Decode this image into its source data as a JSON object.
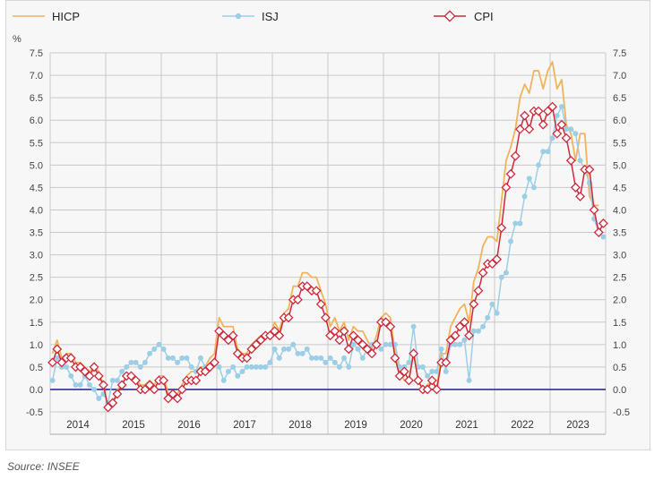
{
  "chart_data": {
    "type": "line",
    "ylabel": "%",
    "ylim": [
      -0.5,
      7.5
    ],
    "yticks": [
      "7.5",
      "7.0",
      "6.5",
      "6.0",
      "5.5",
      "5.0",
      "4.5",
      "4.0",
      "3.5",
      "3.0",
      "2.5",
      "2.0",
      "1.5",
      "1.0",
      "0.5",
      "0.0",
      "-0.5"
    ],
    "years": [
      "2014",
      "2015",
      "2016",
      "2017",
      "2018",
      "2019",
      "2020",
      "2021",
      "2022",
      "2023"
    ],
    "x_start": "2014-01",
    "x_end": "2023-10",
    "source": "Source: INSEE",
    "colors": {
      "hicp": "#f2b35a",
      "isj": "#9ccfe6",
      "cpi": "#cc2a3c",
      "zero": "#2d2f8f",
      "grid": "#c8c8c8"
    },
    "series": [
      {
        "name": "HICP",
        "style": "line",
        "values": [
          0.8,
          1.1,
          0.7,
          0.8,
          0.8,
          0.6,
          0.6,
          0.5,
          0.4,
          0.5,
          0.4,
          0.1,
          -0.4,
          -0.3,
          0.0,
          0.1,
          0.3,
          0.3,
          0.2,
          0.1,
          0.1,
          0.2,
          0.1,
          0.3,
          0.3,
          -0.1,
          -0.1,
          -0.1,
          0.1,
          0.3,
          0.4,
          0.4,
          0.5,
          0.5,
          0.7,
          0.8,
          1.6,
          1.4,
          1.4,
          1.4,
          0.9,
          0.8,
          0.8,
          1.0,
          1.1,
          1.2,
          1.2,
          1.2,
          1.5,
          1.3,
          1.7,
          1.8,
          2.3,
          2.3,
          2.6,
          2.6,
          2.5,
          2.5,
          2.2,
          1.9,
          1.4,
          1.6,
          1.3,
          1.5,
          1.1,
          1.4,
          1.3,
          1.3,
          1.1,
          0.9,
          1.2,
          1.6,
          1.7,
          1.6,
          0.8,
          0.4,
          0.2,
          0.2,
          0.9,
          0.2,
          0.0,
          0.1,
          0.2,
          0.0,
          0.8,
          0.8,
          1.4,
          1.6,
          1.8,
          1.9,
          1.5,
          2.4,
          2.7,
          3.2,
          3.4,
          3.4,
          3.3,
          4.2,
          5.1,
          5.4,
          5.8,
          6.5,
          6.8,
          6.6,
          7.1,
          7.1,
          6.7,
          7.1,
          7.3,
          6.7,
          6.9,
          5.9,
          5.7,
          5.1,
          5.7,
          5.7,
          4.3,
          4.1,
          4.1
        ]
      },
      {
        "name": "ISJ",
        "style": "dots",
        "values": [
          0.2,
          0.7,
          0.5,
          0.5,
          0.3,
          0.1,
          0.1,
          0.3,
          0.1,
          0.0,
          -0.2,
          -0.1,
          -0.3,
          0.2,
          0.2,
          0.4,
          0.5,
          0.6,
          0.6,
          0.5,
          0.6,
          0.8,
          0.9,
          1.0,
          0.9,
          0.7,
          0.7,
          0.6,
          0.7,
          0.7,
          0.5,
          0.4,
          0.7,
          0.5,
          0.5,
          0.6,
          0.5,
          0.2,
          0.4,
          0.5,
          0.3,
          0.4,
          0.5,
          0.5,
          0.5,
          0.5,
          0.5,
          0.6,
          0.9,
          0.7,
          0.9,
          0.9,
          1.0,
          0.8,
          0.8,
          0.9,
          0.7,
          0.7,
          0.7,
          0.6,
          0.7,
          0.6,
          0.5,
          0.7,
          0.5,
          1.0,
          0.9,
          0.7,
          0.9,
          1.0,
          1.0,
          0.9,
          1.0,
          1.0,
          1.0,
          0.5,
          0.5,
          0.6,
          1.4,
          0.5,
          0.5,
          0.3,
          0.4,
          0.4,
          0.9,
          0.4,
          1.0,
          1.0,
          1.0,
          1.1,
          0.2,
          1.3,
          1.3,
          1.4,
          1.6,
          1.9,
          1.7,
          2.5,
          2.6,
          3.3,
          3.7,
          3.7,
          4.3,
          4.7,
          4.5,
          5.0,
          5.3,
          5.3,
          5.6,
          6.1,
          6.3,
          5.8,
          5.8,
          5.7,
          5.1,
          4.9,
          4.6,
          3.8,
          3.5,
          3.4
        ]
      },
      {
        "name": "CPI",
        "style": "diamonds",
        "values": [
          0.6,
          0.9,
          0.6,
          0.7,
          0.7,
          0.5,
          0.5,
          0.4,
          0.3,
          0.5,
          0.3,
          0.1,
          -0.4,
          -0.3,
          -0.1,
          0.1,
          0.3,
          0.3,
          0.2,
          0.0,
          0.0,
          0.1,
          0.0,
          0.2,
          0.2,
          -0.2,
          -0.1,
          -0.2,
          0.0,
          0.2,
          0.2,
          0.2,
          0.4,
          0.4,
          0.5,
          0.6,
          1.3,
          1.2,
          1.1,
          1.2,
          0.8,
          0.7,
          0.7,
          0.9,
          1.0,
          1.1,
          1.2,
          1.2,
          1.3,
          1.2,
          1.6,
          1.6,
          2.0,
          2.0,
          2.3,
          2.3,
          2.2,
          2.2,
          1.9,
          1.6,
          1.2,
          1.3,
          1.1,
          1.3,
          0.9,
          1.2,
          1.1,
          1.0,
          0.9,
          0.8,
          1.0,
          1.5,
          1.5,
          1.4,
          0.7,
          0.3,
          0.4,
          0.2,
          0.8,
          0.2,
          0.0,
          0.0,
          0.2,
          0.0,
          0.6,
          0.6,
          1.1,
          1.2,
          1.4,
          1.5,
          1.2,
          1.9,
          2.2,
          2.6,
          2.8,
          2.8,
          2.9,
          3.6,
          4.5,
          4.8,
          5.2,
          5.8,
          6.1,
          5.8,
          6.2,
          6.2,
          5.9,
          6.2,
          6.3,
          5.7,
          5.9,
          5.6,
          5.1,
          4.5,
          4.3,
          4.9,
          4.9,
          4.0,
          3.5,
          3.7
        ]
      }
    ]
  }
}
